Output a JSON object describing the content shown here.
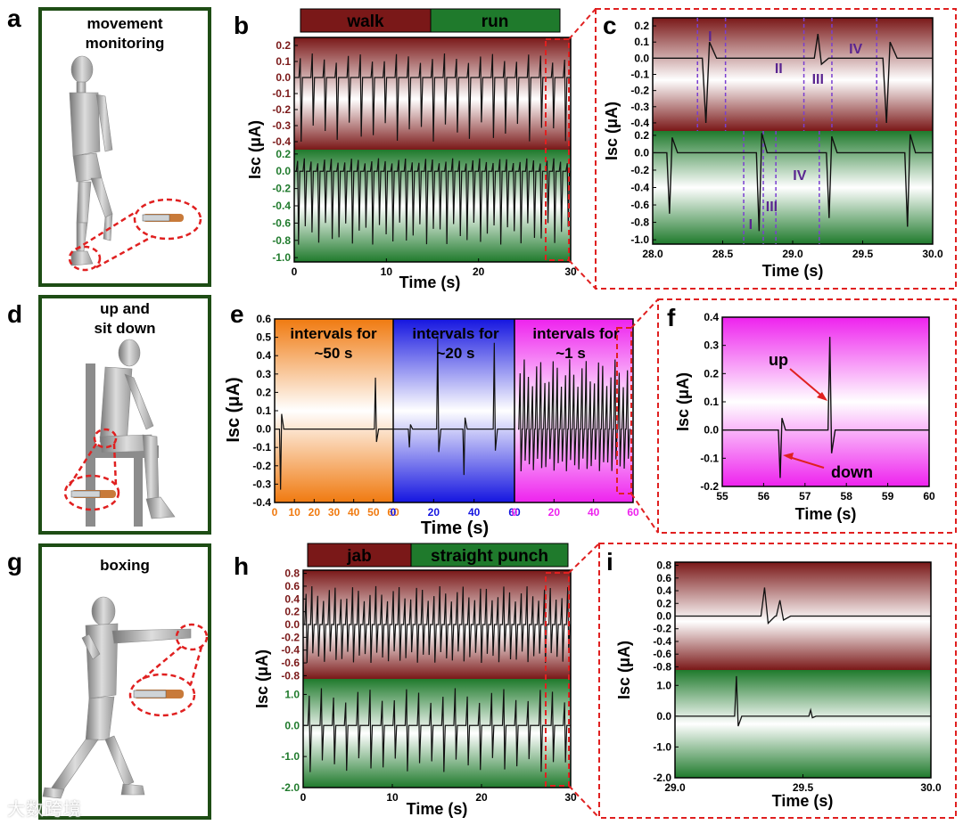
{
  "panel_letters": [
    "a",
    "b",
    "c",
    "d",
    "e",
    "f",
    "g",
    "h",
    "i"
  ],
  "illustrations": {
    "a": {
      "caption_lines": [
        "movement",
        "monitoring"
      ]
    },
    "d": {
      "caption_lines": [
        "up and",
        "sit down"
      ]
    },
    "g": {
      "caption_lines": [
        "boxing"
      ]
    }
  },
  "watermark": "大数跨境",
  "colors": {
    "frame_green": "#1e4d15",
    "maroon": "#7a1818",
    "green": "#1f7a2c",
    "dash_red": "#e02020",
    "orange": "#f07a10",
    "blue": "#1515e0",
    "magenta": "#ee22ee",
    "roman_purple": "#5a2590",
    "annot_red": "#e02020"
  },
  "chart_data": [
    {
      "id": "b",
      "type": "line",
      "xlabel": "Time (s)",
      "ylabel": "Isc (μA)",
      "header": [
        {
          "label": "walk",
          "color": "#7a1818"
        },
        {
          "label": "run",
          "color": "#1f7a2c"
        }
      ],
      "xlim": [
        0,
        30
      ],
      "xticks": [
        0,
        10,
        20,
        30
      ],
      "subplots": [
        {
          "name": "walk",
          "ylim": [
            -0.45,
            0.25
          ],
          "yticks": [
            0.2,
            0.1,
            0.0,
            -0.1,
            -0.2,
            -0.3,
            -0.4
          ],
          "tick_labels": [
            "0.2",
            "0.1",
            "0.0",
            "-0.1",
            "-0.2",
            "-0.3",
            "-0.4"
          ],
          "tick_color": "#7a1818",
          "baseline": 0.0,
          "peak_count": 23,
          "peak_pos": 0.15,
          "peak_neg": -0.4
        },
        {
          "name": "run",
          "ylim": [
            -1.05,
            0.25
          ],
          "yticks": [
            0.2,
            0.0,
            -0.2,
            -0.4,
            -0.6,
            -0.8,
            -1.0
          ],
          "tick_labels": [
            "0.2",
            "0.0",
            "-0.2",
            "-0.4",
            "-0.6",
            "-0.8",
            "-1.0"
          ],
          "tick_color": "#1f7a2c",
          "baseline": 0.0,
          "peak_count": 41,
          "peak_pos": 0.15,
          "peak_neg": -0.85
        }
      ],
      "zoom_range_s": [
        27.5,
        30
      ]
    },
    {
      "id": "c",
      "type": "line",
      "xlabel": "Time (s)",
      "ylabel": "Isc (μA)",
      "xlim": [
        28.0,
        30.0
      ],
      "xticks": [
        28.0,
        28.5,
        29.0,
        29.5,
        30.0
      ],
      "xtick_labels": [
        "28.0",
        "28.5",
        "29.0",
        "29.5",
        "30.0"
      ],
      "subplots": [
        {
          "name": "walk",
          "ylim": [
            -0.45,
            0.25
          ],
          "yticks": [
            0.2,
            0.1,
            0.0,
            -0.1,
            -0.2,
            -0.3,
            -0.4
          ],
          "tick_labels": [
            "0.2",
            "0.1",
            "0.0",
            "-0.1",
            "-0.2",
            "-0.3",
            "-0.4"
          ],
          "phases": [
            {
              "label": "I",
              "x": 28.41
            },
            {
              "label": "II",
              "x": 28.9
            },
            {
              "label": "III",
              "x": 29.18
            },
            {
              "label": "IV",
              "x": 29.45
            }
          ],
          "dashed_x": [
            28.32,
            28.52,
            29.08,
            29.28,
            29.6
          ],
          "events": [
            {
              "t": 28.38,
              "amp": -0.4
            },
            {
              "t": 29.18,
              "amp": 0.15
            },
            {
              "t": 29.67,
              "amp": -0.4
            }
          ]
        },
        {
          "name": "run",
          "ylim": [
            -1.05,
            0.25
          ],
          "yticks": [
            0.2,
            0.0,
            -0.2,
            -0.4,
            -0.6,
            -0.8,
            -1.0
          ],
          "tick_labels": [
            "0.2",
            "0.0",
            "-0.2",
            "-0.4",
            "-0.6",
            "-0.8",
            "-1.0"
          ],
          "phases": [
            {
              "label": "I",
              "x": 28.7
            },
            {
              "label": "III",
              "x": 28.85
            },
            {
              "label": "IV",
              "x": 29.05
            }
          ],
          "dashed_x": [
            28.65,
            28.79,
            28.88,
            29.19
          ],
          "events": [
            {
              "t": 28.12,
              "amp": -0.7
            },
            {
              "t": 28.76,
              "amp": -0.9
            },
            {
              "t": 29.26,
              "amp": -0.75
            },
            {
              "t": 29.82,
              "amp": -0.85
            }
          ]
        }
      ]
    },
    {
      "id": "e",
      "type": "line",
      "xlabel": "Time (s)",
      "ylabel": "Isc (μA)",
      "ylim": [
        -0.4,
        0.6
      ],
      "yticks": [
        0.6,
        0.5,
        0.4,
        0.3,
        0.2,
        0.1,
        0.0,
        -0.1,
        -0.2,
        -0.3,
        -0.4
      ],
      "ytick_labels": [
        "0.6",
        "0.5",
        "0.4",
        "0.3",
        "0.2",
        "0.1",
        "0.0",
        "-0.1",
        "-0.2",
        "-0.3",
        "-0.4"
      ],
      "segments": [
        {
          "label_lines": [
            "intervals for",
            "~50 s"
          ],
          "color": "#f07a10",
          "xlim": [
            0,
            60
          ],
          "xticks": [
            0,
            10,
            20,
            30,
            40,
            50,
            60
          ],
          "xtick_labels": [
            "0",
            "10",
            "20",
            "30",
            "40",
            "50",
            "60"
          ],
          "events": [
            {
              "t": 3,
              "amp": -0.33
            },
            {
              "t": 51,
              "amp": 0.28
            }
          ]
        },
        {
          "label_lines": [
            "intervals for",
            "~20 s"
          ],
          "color": "#1515e0",
          "xlim": [
            0,
            60
          ],
          "xticks": [
            0,
            20,
            40,
            60
          ],
          "xtick_labels": [
            "0",
            "20",
            "40",
            "60"
          ],
          "events": [
            {
              "t": 8,
              "amp": -0.1
            },
            {
              "t": 22,
              "amp": 0.5
            },
            {
              "t": 35,
              "amp": -0.25
            },
            {
              "t": 50,
              "amp": 0.47
            }
          ]
        },
        {
          "label_lines": [
            "intervals for",
            "~1 s"
          ],
          "color": "#ee22ee",
          "xlim": [
            0,
            60
          ],
          "xticks": [
            0,
            20,
            40,
            60
          ],
          "xtick_labels": [
            "0",
            "20",
            "40",
            "60"
          ],
          "burst_count": 27,
          "burst_pos": 0.38,
          "burst_neg": -0.23
        }
      ]
    },
    {
      "id": "f",
      "type": "line",
      "xlabel": "Time (s)",
      "ylabel": "Isc (μA)",
      "xlim": [
        55,
        60
      ],
      "ylim": [
        -0.2,
        0.4
      ],
      "xticks": [
        55,
        56,
        57,
        58,
        59,
        60
      ],
      "xtick_labels": [
        "55",
        "56",
        "57",
        "58",
        "59",
        "60"
      ],
      "yticks": [
        0.4,
        0.3,
        0.2,
        0.1,
        0.0,
        -0.1,
        -0.2
      ],
      "ytick_labels": [
        "0.4",
        "0.3",
        "0.2",
        "0.1",
        "0.0",
        "-0.1",
        "-0.2"
      ],
      "events": [
        {
          "t": 56.4,
          "amp": -0.17,
          "label": "down"
        },
        {
          "t": 57.6,
          "amp": 0.33,
          "label": "up"
        }
      ],
      "annotations": [
        "up",
        "down"
      ]
    },
    {
      "id": "h",
      "type": "line",
      "xlabel": "Time (s)",
      "ylabel": "Isc (μA)",
      "header": [
        {
          "label": "jab",
          "color": "#7a1818"
        },
        {
          "label": "straight punch",
          "color": "#1f7a2c"
        }
      ],
      "xlim": [
        0,
        30
      ],
      "xticks": [
        0,
        10,
        20,
        30
      ],
      "subplots": [
        {
          "name": "jab",
          "ylim": [
            -0.85,
            0.85
          ],
          "yticks": [
            0.8,
            0.6,
            0.4,
            0.2,
            0.0,
            -0.2,
            -0.4,
            -0.6,
            -0.8
          ],
          "tick_labels": [
            "0.8",
            "0.6",
            "0.4",
            "0.2",
            "0.0",
            "-0.2",
            "-0.4",
            "-0.6",
            "-0.8"
          ],
          "tick_color": "#7a1818",
          "peak_count": 46,
          "peak_pos": 0.6,
          "peak_neg": -0.6
        },
        {
          "name": "straight punch",
          "ylim": [
            -2.0,
            1.5
          ],
          "yticks": [
            1.0,
            0.0,
            -1.0,
            -2.0
          ],
          "tick_labels": [
            "1.0",
            "0.0",
            "-1.0",
            "-2.0"
          ],
          "tick_color": "#1f7a2c",
          "peak_count": 22,
          "peak_pos": 1.2,
          "peak_neg": -1.5
        }
      ],
      "zoom_range_s": [
        27.5,
        30
      ]
    },
    {
      "id": "i",
      "type": "line",
      "xlabel": "Time (s)",
      "ylabel": "Isc (μA)",
      "xlim": [
        29.0,
        30.0
      ],
      "xticks": [
        29.0,
        29.5,
        30.0
      ],
      "xtick_labels": [
        "29.0",
        "29.5",
        "30.0"
      ],
      "subplots": [
        {
          "name": "jab",
          "ylim": [
            -0.85,
            0.85
          ],
          "yticks": [
            0.8,
            0.6,
            0.4,
            0.2,
            0.0,
            -0.2,
            -0.4,
            -0.6,
            -0.8
          ],
          "tick_labels": [
            "0.8",
            "0.6",
            "0.4",
            "0.2",
            "0.0",
            "-0.2",
            "-0.4",
            "-0.6",
            "-0.8"
          ],
          "events": [
            {
              "t": 29.35,
              "amp": 0.45
            },
            {
              "t": 29.41,
              "amp": 0.25
            }
          ]
        },
        {
          "name": "straight punch",
          "ylim": [
            -2.0,
            1.5
          ],
          "yticks": [
            1.0,
            0.0,
            -1.0,
            -2.0
          ],
          "tick_labels": [
            "1.0",
            "0.0",
            "-1.0",
            "-2.0"
          ],
          "events": [
            {
              "t": 29.24,
              "amp": 1.3
            },
            {
              "t": 29.53,
              "amp": 0.2
            }
          ]
        }
      ]
    }
  ]
}
